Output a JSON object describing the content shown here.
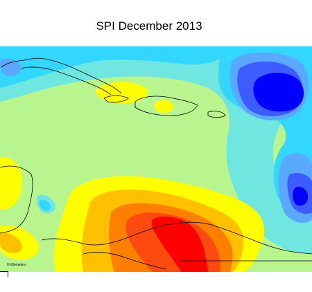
{
  "map": {
    "title": "SPI December 2013",
    "scale_label": "0 Kilometers",
    "colors": {
      "very_wet": "#0000ff",
      "wet": "#3d5cff",
      "moist": "#5aa8ff",
      "mild_moist": "#33d6ff",
      "near_normal_wet": "#70e6e0",
      "near_normal": "#b9f58f",
      "mild_dry": "#ffff00",
      "moderate_dry": "#ffc000",
      "severe_dry": "#ff7f00",
      "very_dry": "#ff4a10",
      "extreme_dry": "#ff0000",
      "coastline": "#000000"
    }
  }
}
